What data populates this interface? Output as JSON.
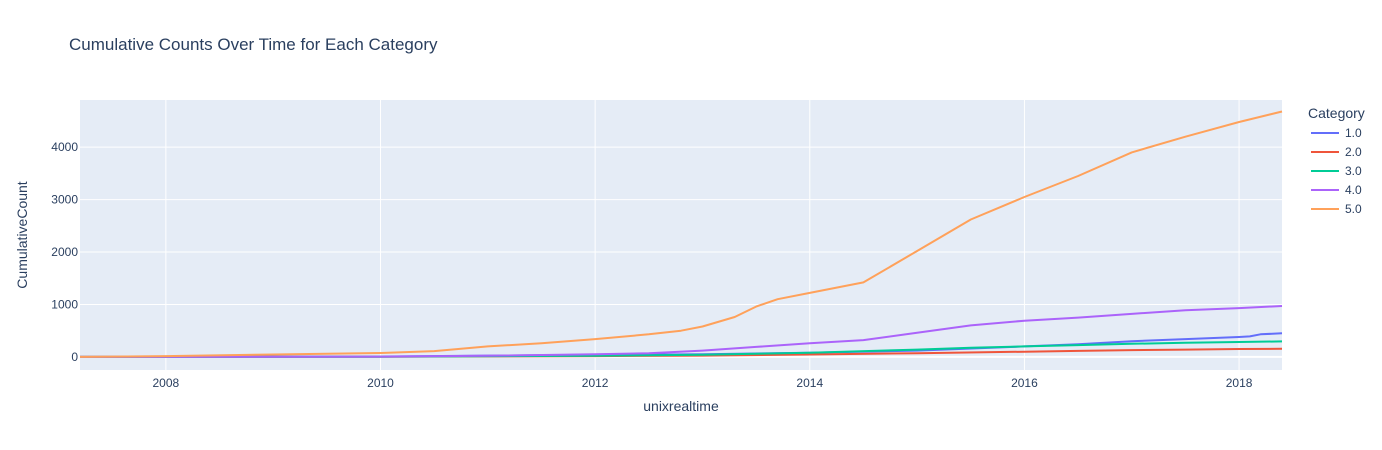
{
  "chart_data": {
    "type": "line",
    "title": "Cumulative Counts Over Time for Each Category",
    "xlabel": "unixrealtime",
    "ylabel": "CumulativeCount",
    "xlim": [
      2007.2,
      2018.4
    ],
    "ylim": [
      -250,
      4900
    ],
    "x_ticks": [
      2008,
      2010,
      2012,
      2014,
      2016,
      2018
    ],
    "x_tick_labels": [
      "2008",
      "2010",
      "2012",
      "2014",
      "2016",
      "2018"
    ],
    "y_ticks": [
      0,
      1000,
      2000,
      3000,
      4000
    ],
    "y_tick_labels": [
      "0",
      "1000",
      "2000",
      "3000",
      "4000"
    ],
    "grid": true,
    "legend": {
      "title": "Category",
      "placement": "right"
    },
    "series": [
      {
        "name": "1.0",
        "color": "#636efa",
        "x": [
          2007.2,
          2009.0,
          2010.0,
          2011.0,
          2012.0,
          2013.0,
          2014.0,
          2015.0,
          2016.0,
          2016.5,
          2017.0,
          2017.5,
          2018.0,
          2018.1,
          2018.2,
          2018.4
        ],
        "y": [
          0,
          3,
          8,
          25,
          40,
          50,
          80,
          120,
          200,
          240,
          300,
          340,
          380,
          390,
          430,
          450
        ]
      },
      {
        "name": "2.0",
        "color": "#ef553b",
        "x": [
          2007.2,
          2010.0,
          2012.0,
          2013.0,
          2014.0,
          2015.0,
          2016.0,
          2016.5,
          2017.0,
          2017.5,
          2018.0,
          2018.4
        ],
        "y": [
          0,
          3,
          15,
          25,
          45,
          70,
          100,
          115,
          130,
          140,
          150,
          155
        ]
      },
      {
        "name": "3.0",
        "color": "#00cc96",
        "x": [
          2007.2,
          2010.0,
          2012.0,
          2013.0,
          2014.0,
          2015.0,
          2015.5,
          2016.0,
          2016.5,
          2017.0,
          2017.5,
          2018.0,
          2018.4
        ],
        "y": [
          0,
          3,
          20,
          40,
          80,
          140,
          175,
          200,
          225,
          250,
          270,
          285,
          295
        ]
      },
      {
        "name": "4.0",
        "color": "#ab63fa",
        "x": [
          2007.2,
          2010.0,
          2011.0,
          2012.0,
          2012.5,
          2013.0,
          2013.5,
          2014.0,
          2014.5,
          2015.0,
          2015.5,
          2016.0,
          2016.5,
          2017.0,
          2017.5,
          2018.0,
          2018.4
        ],
        "y": [
          0,
          5,
          20,
          50,
          70,
          120,
          190,
          260,
          320,
          460,
          600,
          690,
          750,
          820,
          890,
          930,
          970
        ]
      },
      {
        "name": "5.0",
        "color": "#ffa15a",
        "x": [
          2007.2,
          2008.0,
          2009.0,
          2010.0,
          2010.5,
          2011.0,
          2011.5,
          2012.0,
          2012.5,
          2012.8,
          2013.0,
          2013.3,
          2013.5,
          2013.7,
          2014.0,
          2014.5,
          2015.0,
          2015.5,
          2016.0,
          2016.5,
          2017.0,
          2017.5,
          2018.0,
          2018.4
        ],
        "y": [
          0,
          15,
          45,
          75,
          110,
          200,
          260,
          340,
          430,
          500,
          580,
          760,
          960,
          1100,
          1220,
          1420,
          2020,
          2620,
          3050,
          3450,
          3900,
          4200,
          4480,
          4680
        ]
      }
    ]
  }
}
